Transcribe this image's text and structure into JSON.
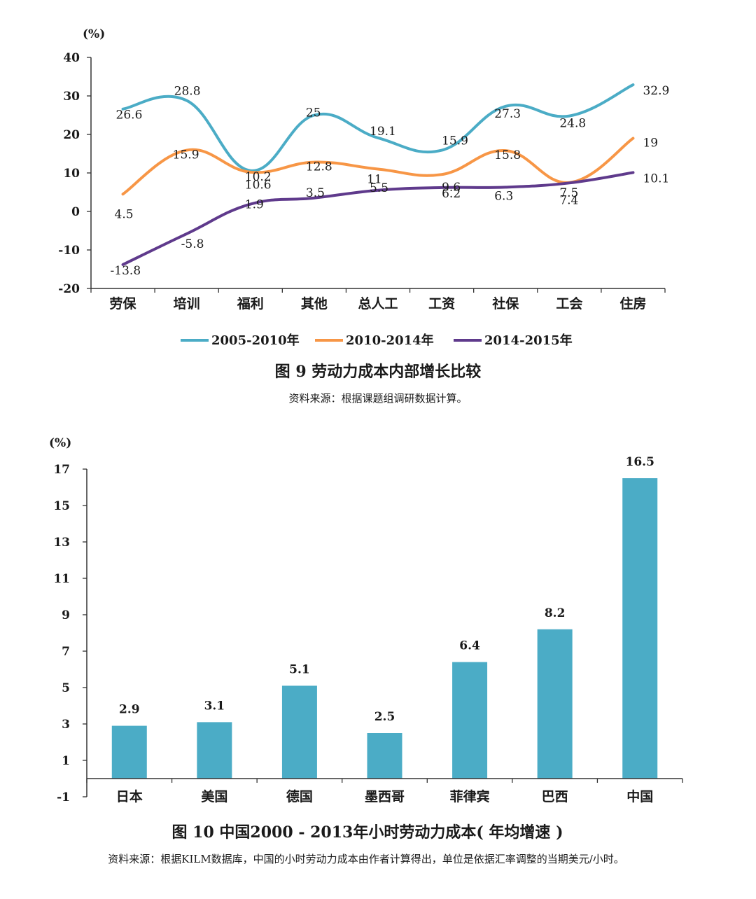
{
  "chart_data": [
    {
      "type": "line",
      "unit_label": "(%)",
      "categories": [
        "劳保",
        "培训",
        "福利",
        "其他",
        "总人工",
        "工资",
        "社保",
        "工会",
        "住房"
      ],
      "yticks": [
        40,
        30,
        20,
        10,
        0,
        -10,
        -20
      ],
      "ylim": [
        -20,
        40
      ],
      "series": [
        {
          "name": "2005-2010年",
          "color": "#4bacc6",
          "values": [
            26.6,
            28.8,
            10.6,
            25,
            19.1,
            15.9,
            27.3,
            24.8,
            32.9
          ]
        },
        {
          "name": "2010-2014年",
          "color": "#f79646",
          "values": [
            4.5,
            15.9,
            10.2,
            12.8,
            11,
            9.6,
            15.8,
            7.5,
            19
          ]
        },
        {
          "name": "2014-2015年",
          "color": "#5f3a8c",
          "values": [
            -13.8,
            -5.8,
            1.9,
            3.5,
            5.5,
            6.2,
            6.3,
            7.4,
            10.1
          ]
        }
      ],
      "data_labels": [
        [
          "26.6",
          "28.8",
          "10.6",
          "25",
          "19.1",
          "15.9",
          "27.3",
          "24.8",
          "32.9"
        ],
        [
          "4.5",
          "15.9",
          "10.2",
          "12.8",
          "11",
          "9.6",
          "15.8",
          "7.5",
          "19"
        ],
        [
          "-13.8",
          "-5.8",
          "1.9",
          "3.5",
          "5.5",
          "6.2",
          "6.3",
          "7.4",
          "10.1"
        ]
      ],
      "legend_position": "bottom",
      "caption": "图 9  劳动力成本内部增长比较",
      "source": "资料来源：根据课题组调研数据计算。"
    },
    {
      "type": "bar",
      "unit_label": "(%)",
      "categories": [
        "日本",
        "美国",
        "德国",
        "墨西哥",
        "菲律宾",
        "巴西",
        "中国"
      ],
      "values": [
        2.9,
        3.1,
        5.1,
        2.5,
        6.4,
        8.2,
        16.5
      ],
      "value_labels": [
        "2.9",
        "3.1",
        "5.1",
        "2.5",
        "6.4",
        "8.2",
        "16.5"
      ],
      "yticks": [
        17,
        15,
        13,
        11,
        9,
        7,
        5,
        3,
        1,
        -1
      ],
      "ylim": [
        -1,
        17
      ],
      "color": "#4bacc6",
      "caption": "图 10  中国2000 - 2013年小时劳动力成本( 年均增速 )",
      "source": "资料来源：根据KILM数据库，中国的小时劳动力成本由作者计算得出，单位是依据汇率调整的当期美元/小时。"
    }
  ]
}
